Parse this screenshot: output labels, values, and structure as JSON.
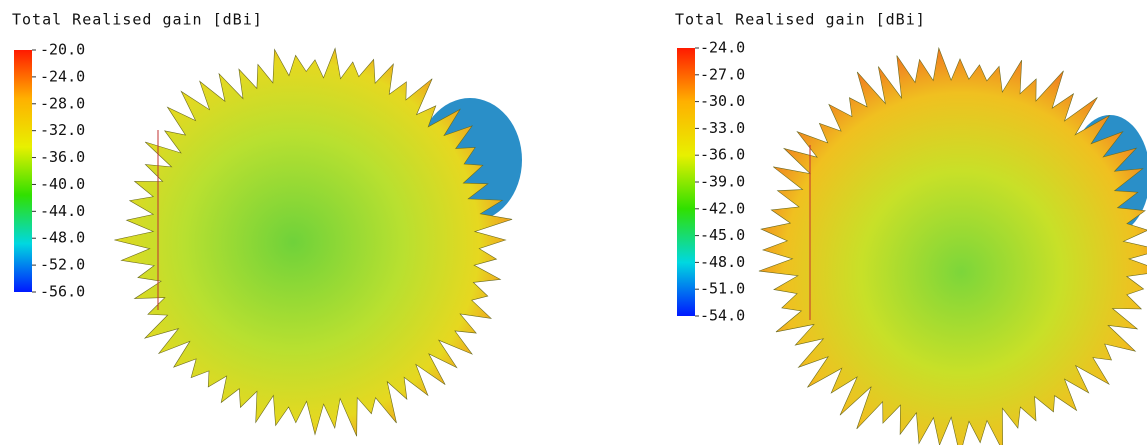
{
  "chart_data": [
    {
      "type": "colorbar",
      "title": "Total Realised gain [dBi]",
      "clim": [
        -56,
        -20
      ],
      "cticks": [
        {
          "value": -20,
          "label": "-20.0"
        },
        {
          "value": -24,
          "label": "-24.0"
        },
        {
          "value": -28,
          "label": "-28.0"
        },
        {
          "value": -32,
          "label": "-32.0"
        },
        {
          "value": -36,
          "label": "-36.0"
        },
        {
          "value": -40,
          "label": "-40.0"
        },
        {
          "value": -44,
          "label": "-44.0"
        },
        {
          "value": -48,
          "label": "-48.0"
        },
        {
          "value": -52,
          "label": "-52.0"
        },
        {
          "value": -56,
          "label": "-56.0"
        }
      ],
      "colormap": [
        "#ff1a00",
        "#ffb000",
        "#e8f000",
        "#30e000",
        "#00d8e0",
        "#0018ff"
      ]
    },
    {
      "type": "colorbar",
      "title": "Total Realised gain [dBi]",
      "clim": [
        -54,
        -24
      ],
      "cticks": [
        {
          "value": -24,
          "label": "-24.0"
        },
        {
          "value": -27,
          "label": "-27.0"
        },
        {
          "value": -30,
          "label": "-30.0"
        },
        {
          "value": -33,
          "label": "-33.0"
        },
        {
          "value": -36,
          "label": "-36.0"
        },
        {
          "value": -39,
          "label": "-39.0"
        },
        {
          "value": -42,
          "label": "-42.0"
        },
        {
          "value": -45,
          "label": "-45.0"
        },
        {
          "value": -48,
          "label": "-48.0"
        },
        {
          "value": -51,
          "label": "-51.0"
        },
        {
          "value": -54,
          "label": "-54.0"
        }
      ],
      "colormap": [
        "#ff1a00",
        "#ffb000",
        "#e8f000",
        "#30e000",
        "#00d8e0",
        "#0018ff"
      ]
    }
  ]
}
